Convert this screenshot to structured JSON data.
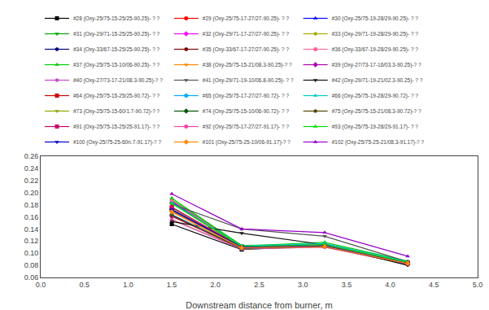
{
  "chart_data": {
    "type": "line",
    "xlabel": "Downstream distance from burner, m",
    "x": [
      1.5,
      2.3,
      3.25,
      4.2
    ],
    "xlim": [
      0.0,
      5.0
    ],
    "ylim": [
      0.06,
      0.26
    ],
    "xticks": [
      {
        "value": 0.0,
        "label": "0.0"
      },
      0.5,
      {
        "value": 1.0,
        "label": "1.0"
      },
      1.5,
      {
        "value": 2.0,
        "label": "2.0"
      },
      2.5,
      {
        "value": 3.0,
        "label": "3.0"
      },
      3.5,
      {
        "value": 4.0,
        "label": "4.0"
      },
      4.5,
      {
        "value": 5.0,
        "label": "5.0"
      }
    ],
    "yticks": [
      0.06,
      0.08,
      {
        "value": 0.1,
        "label": "0.10"
      },
      0.12,
      0.14,
      0.16,
      0.18,
      {
        "value": 0.2,
        "label": "0.20"
      },
      0.22,
      0.24,
      0.26
    ],
    "grid": false,
    "legend": "top",
    "series": [
      {
        "name": "#28 (Oxy-25/75-15-25/25-90.25)- ? ?",
        "color": "#000000",
        "marker": "square",
        "values": [
          0.148,
          0.106,
          0.112,
          0.083
        ]
      },
      {
        "name": "#29 (Oxy-25/75-17-27/27-90.25)- ? ?",
        "color": "#ff0000",
        "marker": "circle",
        "values": [
          0.183,
          0.11,
          0.112,
          0.085
        ]
      },
      {
        "name": "#30 (Oxy-25/75-19-28/29-90.25)- ? ?",
        "color": "#0000ff",
        "marker": "triangle-up",
        "values": [
          0.185,
          0.112,
          0.115,
          0.086
        ]
      },
      {
        "name": "#31 (Oxy-29/71-15-25/25-90.25)- ? ?",
        "color": "#00aa00",
        "marker": "triangle-down",
        "values": [
          0.188,
          0.113,
          0.114,
          0.086
        ]
      },
      {
        "name": "#32 (Oxy-29/71-17-27/27-90.25)- ? ?",
        "color": "#ff00ff",
        "marker": "diamond",
        "values": [
          0.172,
          0.108,
          0.111,
          0.082
        ]
      },
      {
        "name": "#33 (Oxy-29/71-19-28/29-90.25)- ? ?",
        "color": "#aaaa00",
        "marker": "pentagon",
        "values": [
          0.17,
          0.109,
          0.112,
          0.082
        ]
      },
      {
        "name": "#34 (Oxy-33/67-15-25/25-90.25)- ? ?",
        "color": "#000080",
        "marker": "hexagon",
        "values": [
          0.163,
          0.108,
          0.111,
          0.082
        ]
      },
      {
        "name": "#35 (Oxy-33/67-17-27/27-90.25)- ? ?",
        "color": "#800000",
        "marker": "octagon",
        "values": [
          0.161,
          0.108,
          0.112,
          0.082
        ]
      },
      {
        "name": "#36 (Oxy-33/67-19-28/29-90.25)- ? ?",
        "color": "#ff6699",
        "marker": "circle",
        "values": [
          0.187,
          0.111,
          0.114,
          0.085
        ]
      },
      {
        "name": "#37 (Oxy-25/75-15-10/06-90.25)- ? ?",
        "color": "#00cc00",
        "marker": "triangle-up",
        "values": [
          0.191,
          0.112,
          0.118,
          0.087
        ]
      },
      {
        "name": "#38 (Oxy-25/75-15-21/08.3-90.25)-? ?",
        "color": "#ff8800",
        "marker": "triangle-down",
        "values": [
          0.156,
          0.107,
          0.11,
          0.082
        ]
      },
      {
        "name": "#39 (Oxy-27/73-17-16/03.3-90.25)-? ?",
        "color": "#aa00aa",
        "marker": "diamond",
        "values": [
          0.162,
          0.108,
          0.111,
          0.082
        ]
      },
      {
        "name": "#40 (Oxy-27/73-17-21/08.3-90.25)-? ?",
        "color": "#cc44cc",
        "marker": "pentagon",
        "values": [
          0.155,
          0.107,
          0.11,
          0.082
        ]
      },
      {
        "name": "#41 (Oxy-29/71-19-10/06.8-90.25)- ? ?",
        "color": "#555555",
        "marker": "triangle-down",
        "values": [
          0.181,
          0.14,
          0.128,
          0.086
        ]
      },
      {
        "name": "#42 (Oxy-29/71-19-21/02.3-90.25)- ? ?",
        "color": "#111111",
        "marker": "triangle-down",
        "values": [
          0.152,
          0.133,
          0.114,
          0.08
        ]
      },
      {
        "name": "#64 (Oxy-25/75-15-25/25-90.72)- ? ?",
        "color": "#cc0000",
        "marker": "square",
        "values": [
          0.175,
          0.11,
          0.112,
          0.084
        ]
      },
      {
        "name": "#65 (Oxy-25/75-17-27/27-90.72)- ? ?",
        "color": "#00aaff",
        "marker": "circle",
        "values": [
          0.164,
          0.108,
          0.112,
          0.083
        ]
      },
      {
        "name": "#66 (Oxy-25/75-19-28/29-90.72)- ? ?",
        "color": "#00cccc",
        "marker": "triangle-up",
        "values": [
          0.183,
          0.112,
          0.116,
          0.086
        ]
      },
      {
        "name": "#73 (Oxy-25/75-15-60/1.7-90.72)-? ?",
        "color": "#88aa00",
        "marker": "triangle-down",
        "values": [
          0.175,
          0.11,
          0.113,
          0.084
        ]
      },
      {
        "name": "#74 (Oxy-25/75-15-10/06-90.72)- ? ?",
        "color": "#005500",
        "marker": "diamond",
        "values": [
          0.171,
          0.109,
          0.112,
          0.084
        ]
      },
      {
        "name": "#75 (Oxy-25/75-15-21/08.3-90.72)-? ?",
        "color": "#554400",
        "marker": "pentagon",
        "values": [
          0.163,
          0.108,
          0.111,
          0.083
        ]
      },
      {
        "name": "#91 (Oxy-25/75-15-25/25-91.17)- ? ?",
        "color": "#cc0066",
        "marker": "square",
        "values": [
          0.176,
          0.11,
          0.112,
          0.084
        ]
      },
      {
        "name": "#92 (Oxy-25/75-17-27/27-91.17)- ? ?",
        "color": "#ff44aa",
        "marker": "circle",
        "values": [
          0.169,
          0.109,
          0.112,
          0.083
        ]
      },
      {
        "name": "#93 (Oxy-25/75-19-28/29-91.17)- ? ?",
        "color": "#00dd00",
        "marker": "triangle-up",
        "values": [
          0.182,
          0.111,
          0.114,
          0.085
        ]
      },
      {
        "name": "#100 (Oxy-25/75-25-60n.7-91.17)-? ?",
        "color": "#0000cc",
        "marker": "triangle-down",
        "values": [
          0.172,
          0.11,
          0.112,
          0.083
        ]
      },
      {
        "name": "#101 (Oxy-25/75-25-10/06-91.17)-? ?",
        "color": "#ff8800",
        "marker": "diamond",
        "values": [
          0.168,
          0.109,
          0.111,
          0.083
        ]
      },
      {
        "name": "#102 (Oxy-25/75-25-21/08.3-91.17)-? ?",
        "color": "#9900cc",
        "marker": "triangle-up",
        "values": [
          0.198,
          0.14,
          0.134,
          0.095
        ]
      }
    ]
  }
}
